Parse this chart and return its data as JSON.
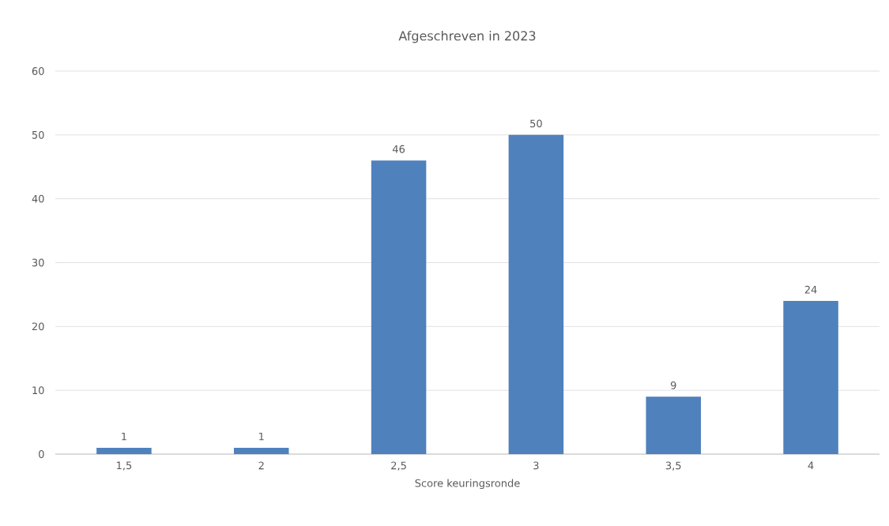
{
  "chart_data": {
    "type": "bar",
    "title": "Afgeschreven in 2023",
    "xlabel": "Score keuringsronde",
    "categories": [
      "1,5",
      "2",
      "2,5",
      "3",
      "3,5",
      "4"
    ],
    "values": [
      1,
      1,
      46,
      50,
      9,
      24
    ],
    "color": "#4f81bd",
    "ylim": [
      0,
      60
    ],
    "yticks": [
      0,
      10,
      20,
      30,
      40,
      50,
      60
    ],
    "grid": "y",
    "data_labels": true
  }
}
